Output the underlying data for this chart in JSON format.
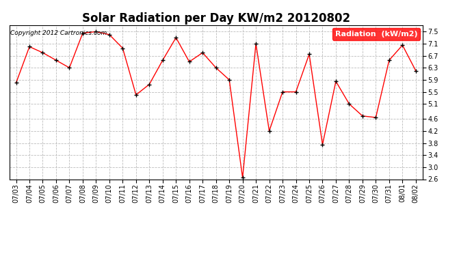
{
  "title": "Solar Radiation per Day KW/m2 20120802",
  "copyright_text": "Copyright 2012 Cartronics.com",
  "legend_label": "Radiation  (kW/m2)",
  "dates": [
    "07/03",
    "07/04",
    "07/05",
    "07/06",
    "07/07",
    "07/08",
    "07/09",
    "07/10",
    "07/11",
    "07/12",
    "07/13",
    "07/14",
    "07/15",
    "07/16",
    "07/17",
    "07/18",
    "07/19",
    "07/20",
    "07/21",
    "07/22",
    "07/23",
    "07/24",
    "07/25",
    "07/26",
    "07/27",
    "07/28",
    "07/29",
    "07/30",
    "07/31",
    "08/01",
    "08/02"
  ],
  "values": [
    5.8,
    7.0,
    6.8,
    6.55,
    6.3,
    7.45,
    7.5,
    7.4,
    6.95,
    5.4,
    5.75,
    6.55,
    7.3,
    6.5,
    6.8,
    6.3,
    5.9,
    2.65,
    7.1,
    4.2,
    5.5,
    5.5,
    6.75,
    3.75,
    5.85,
    5.1,
    4.7,
    4.65,
    6.55,
    7.05,
    6.2
  ],
  "line_color": "red",
  "marker_color": "black",
  "bg_color": "#ffffff",
  "plot_bg_color": "#ffffff",
  "grid_color": "#bbbbbb",
  "ylim": [
    2.6,
    7.7
  ],
  "yticks": [
    2.6,
    3.0,
    3.4,
    3.8,
    4.2,
    4.6,
    5.1,
    5.5,
    5.9,
    6.3,
    6.7,
    7.1,
    7.5
  ],
  "title_fontsize": 12,
  "copyright_fontsize": 6.5,
  "legend_fontsize": 8,
  "tick_fontsize": 7
}
